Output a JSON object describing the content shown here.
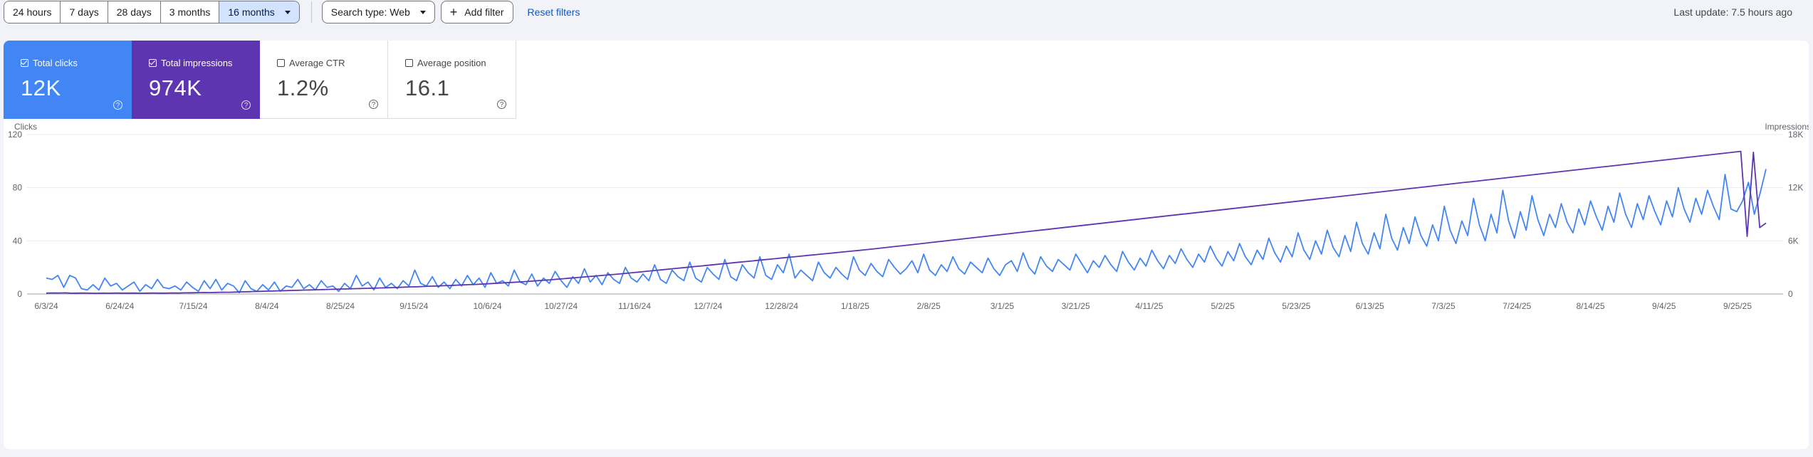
{
  "toolbar": {
    "ranges": [
      "24 hours",
      "7 days",
      "28 days",
      "3 months",
      "16 months"
    ],
    "search_type": "Search type: Web",
    "add_filter": "Add filter",
    "reset": "Reset filters",
    "last_update": "Last update: 7.5 hours ago"
  },
  "metrics": [
    {
      "label": "Total clicks",
      "value": "12K",
      "checked": true,
      "color": "#4285f4"
    },
    {
      "label": "Total impressions",
      "value": "974K",
      "checked": true,
      "color": "#5e35b1"
    },
    {
      "label": "Average CTR",
      "value": "1.2%",
      "checked": false
    },
    {
      "label": "Average position",
      "value": "16.1",
      "checked": false
    }
  ],
  "chart_data": {
    "type": "line",
    "y_left_label": "Clicks",
    "y_right_label": "Impressions",
    "y_left_ticks": [
      "0",
      "40",
      "80",
      "120"
    ],
    "y_right_ticks": [
      "0",
      "6K",
      "12K",
      "18K"
    ],
    "ylim_left": [
      0,
      120
    ],
    "ylim_right": [
      0,
      18000
    ],
    "x_ticks": [
      "6/3/24",
      "6/24/24",
      "7/15/24",
      "8/4/24",
      "8/25/24",
      "9/15/24",
      "10/6/24",
      "10/27/24",
      "11/16/24",
      "12/7/24",
      "12/28/24",
      "1/18/25",
      "2/8/25",
      "3/1/25",
      "3/21/25",
      "4/11/25",
      "5/2/25",
      "5/23/25",
      "6/13/25",
      "7/3/25",
      "7/24/25",
      "8/14/25",
      "9/4/25",
      "9/25/25"
    ],
    "grid": true,
    "series": [
      {
        "name": "Total clicks",
        "color": "#4285f4",
        "axis": "left",
        "values": [
          12,
          11,
          14,
          5,
          14,
          12,
          4,
          3,
          7,
          3,
          12,
          6,
          8,
          3,
          6,
          9,
          2,
          7,
          4,
          11,
          5,
          4,
          6,
          3,
          9,
          5,
          2,
          10,
          4,
          11,
          3,
          8,
          6,
          1,
          10,
          4,
          2,
          7,
          3,
          9,
          2,
          6,
          5,
          11,
          4,
          7,
          3,
          10,
          5,
          6,
          2,
          8,
          4,
          14,
          6,
          9,
          3,
          12,
          5,
          8,
          4,
          10,
          6,
          18,
          8,
          6,
          13,
          5,
          9,
          4,
          11,
          6,
          14,
          7,
          12,
          5,
          16,
          8,
          10,
          6,
          18,
          9,
          7,
          15,
          6,
          12,
          8,
          17,
          10,
          5,
          13,
          8,
          19,
          9,
          14,
          7,
          16,
          11,
          8,
          20,
          12,
          9,
          15,
          10,
          22,
          11,
          8,
          18,
          13,
          10,
          24,
          12,
          9,
          20,
          15,
          11,
          26,
          13,
          10,
          22,
          16,
          12,
          28,
          14,
          11,
          22,
          16,
          30,
          12,
          18,
          14,
          10,
          24,
          16,
          12,
          20,
          15,
          11,
          28,
          18,
          14,
          23,
          17,
          13,
          26,
          20,
          15,
          19,
          25,
          16,
          30,
          18,
          14,
          22,
          17,
          28,
          19,
          15,
          24,
          20,
          16,
          27,
          19,
          14,
          22,
          25,
          17,
          31,
          20,
          15,
          28,
          21,
          17,
          26,
          22,
          18,
          30,
          23,
          16,
          25,
          20,
          29,
          22,
          17,
          32,
          24,
          18,
          27,
          21,
          33,
          25,
          19,
          29,
          23,
          34,
          26,
          20,
          30,
          24,
          36,
          27,
          21,
          32,
          25,
          38,
          28,
          22,
          33,
          26,
          42,
          31,
          24,
          36,
          28,
          46,
          33,
          26,
          40,
          30,
          48,
          35,
          28,
          44,
          32,
          54,
          38,
          30,
          46,
          34,
          60,
          42,
          33,
          50,
          38,
          58,
          44,
          36,
          52,
          40,
          66,
          48,
          38,
          55,
          44,
          72,
          52,
          40,
          60,
          46,
          78,
          55,
          42,
          62,
          48,
          74,
          56,
          44,
          60,
          50,
          68,
          54,
          46,
          64,
          52,
          70,
          58,
          48,
          66,
          54,
          76,
          60,
          50,
          68,
          56,
          74,
          62,
          52,
          70,
          58,
          80,
          64,
          54,
          72,
          60,
          78,
          66,
          56,
          90,
          64,
          62,
          70,
          84,
          60,
          76,
          94
        ],
        "note": ""
      },
      {
        "name": "Total impressions",
        "color": "#5e35b1",
        "axis": "right",
        "values": [
          100,
          120,
          110,
          130,
          90,
          100,
          110,
          90,
          80,
          100,
          90,
          110,
          95,
          100,
          105,
          90,
          100,
          110,
          95,
          100,
          120,
          110,
          130,
          140,
          150,
          170,
          160,
          180,
          200,
          190,
          220,
          240,
          260,
          280,
          300,
          320,
          340,
          360,
          380,
          400,
          420,
          440,
          460,
          480,
          500,
          520,
          540,
          560,
          580,
          600,
          620,
          640,
          660,
          680,
          700,
          720,
          750,
          780,
          800,
          820,
          850,
          880,
          900,
          930,
          960,
          990,
          1020,
          1050,
          1080,
          1110,
          1150,
          1190,
          1230,
          1270,
          1310,
          1350,
          1400,
          1450,
          1500,
          1550,
          1600,
          1660,
          1720,
          1780,
          1840,
          1900,
          1960,
          2020,
          2080,
          2140,
          2200,
          2260,
          2330,
          2400,
          2470,
          2540,
          2610,
          2680,
          2750,
          2820,
          2890,
          2960,
          3030,
          3100,
          3170,
          3240,
          3310,
          3380,
          3450,
          3520,
          3590,
          3660,
          3730,
          3800,
          3870,
          3940,
          4010,
          4080,
          4150,
          4220,
          4290,
          4360,
          4430,
          4500,
          4570,
          4640,
          4710,
          4780,
          4850,
          4920,
          4990,
          5060,
          5140,
          5220,
          5300,
          5380,
          5460,
          5540,
          5620,
          5700,
          5780,
          5860,
          5940,
          6020,
          6100,
          6180,
          6260,
          6340,
          6420,
          6500,
          6580,
          6660,
          6740,
          6820,
          6900,
          6980,
          7060,
          7140,
          7220,
          7300,
          7380,
          7460,
          7540,
          7620,
          7700,
          7780,
          7860,
          7940,
          8020,
          8100,
          8180,
          8260,
          8340,
          8420,
          8500,
          8580,
          8660,
          8740,
          8820,
          8900,
          8980,
          9060,
          9140,
          9220,
          9300,
          9380,
          9460,
          9540,
          9620,
          9700,
          9780,
          9860,
          9940,
          10020,
          10100,
          10180,
          10260,
          10340,
          10420,
          10500,
          10580,
          10660,
          10740,
          10820,
          10900,
          10980,
          11060,
          11140,
          11220,
          11300,
          11380,
          11460,
          11540,
          11620,
          11700,
          11780,
          11860,
          11940,
          12020,
          12100,
          12180,
          12260,
          12340,
          12420,
          12500,
          12580,
          12660,
          12740,
          12820,
          12900,
          12980,
          13060,
          13140,
          13220,
          13300,
          13380,
          13460,
          13540,
          13620,
          13700,
          13780,
          13860,
          13940,
          14020,
          14100,
          14180,
          14260,
          14340,
          14420,
          14500,
          14580,
          14660,
          14740,
          14820,
          14900,
          14980,
          15060,
          15140,
          15220,
          15300,
          15380,
          15460,
          15540,
          15620,
          15700,
          15780,
          15860,
          15940,
          16020,
          16100,
          6500,
          16000,
          7500,
          8000
        ],
        "note": ""
      }
    ]
  }
}
